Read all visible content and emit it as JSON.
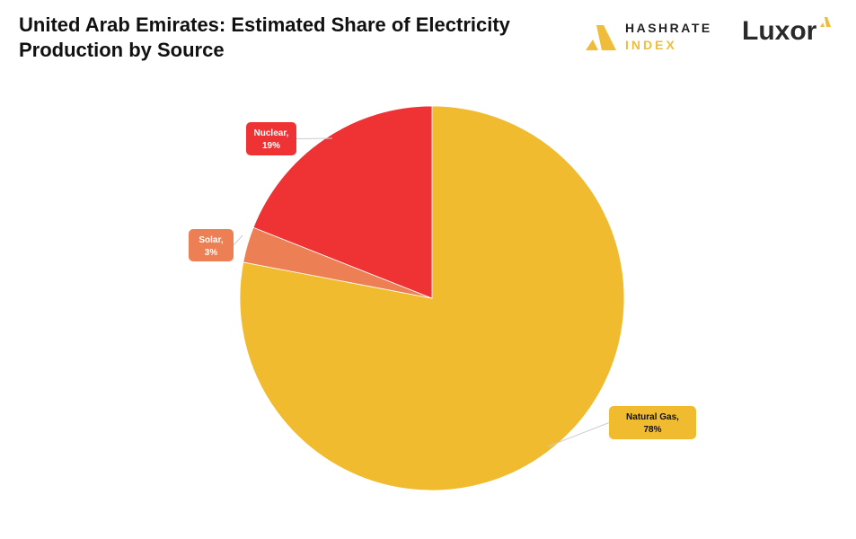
{
  "header": {
    "title": "United Arab Emirates: Estimated Share of Electricity Production by Source"
  },
  "logos": {
    "hashrate_line1": "HASHRATE",
    "hashrate_line2": "INDEX",
    "luxor": "Luxor"
  },
  "chart_data": {
    "type": "pie",
    "title": "United Arab Emirates: Estimated Share of Electricity Production by Source",
    "start_angle": "top",
    "direction": "clockwise",
    "slices": [
      {
        "name": "Natural Gas",
        "value": 78,
        "label": "Natural Gas,",
        "pct": "78%",
        "color": "#f0bb2f",
        "text_color": "#111111"
      },
      {
        "name": "Solar",
        "value": 3,
        "label": "Solar,",
        "pct": "3%",
        "color": "#ec8054",
        "text_color": "#ffffff"
      },
      {
        "name": "Nuclear",
        "value": 19,
        "label": "Nuclear,",
        "pct": "19%",
        "color": "#ef3234",
        "text_color": "#ffffff"
      }
    ]
  }
}
